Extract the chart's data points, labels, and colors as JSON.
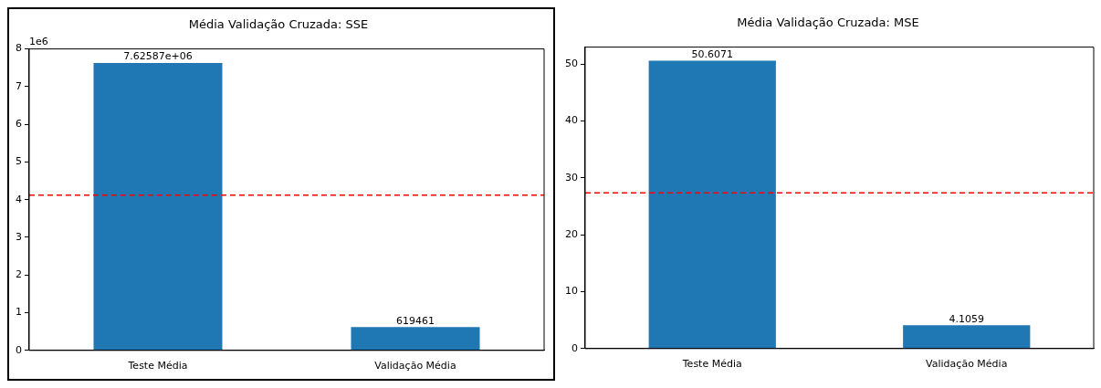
{
  "chart_data": [
    {
      "type": "bar",
      "title": "Média Validação Cruzada: SSE",
      "categories": [
        "Teste Média",
        "Validação Média"
      ],
      "values": [
        7.62587,
        0.619461
      ],
      "color": "#1f77b4",
      "ylim": [
        0,
        8
      ],
      "yticks": [
        0,
        1,
        2,
        3,
        4,
        5,
        6,
        7,
        8
      ],
      "annotations": [
        "1e6",
        {
          "text": "7.62587e+06",
          "x": "Teste Média",
          "y": 7.62587
        },
        {
          "text": "619461",
          "x": "Validação Média",
          "y": 0.619461
        }
      ],
      "ref_lines": [
        {
          "axis": "y",
          "value": 4.12,
          "color": "#ff0000",
          "line_style": "dashed"
        }
      ],
      "grid": false,
      "legend": false
    },
    {
      "type": "bar",
      "title": "Média Validação Cruzada: MSE",
      "categories": [
        "Teste Média",
        "Validação Média"
      ],
      "values": [
        50.6071,
        4.1059
      ],
      "color": "#1f77b4",
      "data_labels": true,
      "ylim": [
        0,
        53
      ],
      "yticks": [
        0,
        10,
        20,
        30,
        40,
        50
      ],
      "ref_lines": [
        {
          "axis": "y",
          "value": 27.3565,
          "color": "#ff0000",
          "line_style": "dashed"
        }
      ],
      "grid": false,
      "legend": false
    }
  ]
}
